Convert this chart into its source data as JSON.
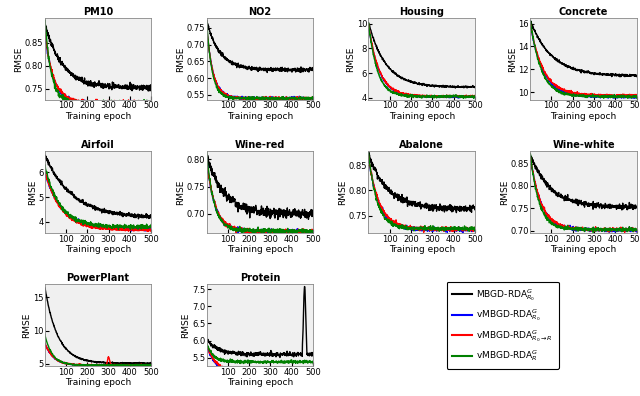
{
  "subplots": [
    {
      "title": "PM10",
      "row": 0,
      "col": 0,
      "ylim": [
        0.725,
        0.905
      ],
      "yticks": [
        0.75,
        0.8,
        0.85
      ],
      "curves": {
        "black": {
          "y0": 0.895,
          "yf": 0.752,
          "tau": 80,
          "noise": 0.003
        },
        "blue": {
          "y0": 0.875,
          "yf": 0.718,
          "tau": 40,
          "noise": 0.002
        },
        "red": {
          "y0": 0.88,
          "yf": 0.72,
          "tau": 40,
          "noise": 0.002
        },
        "green": {
          "y0": 0.91,
          "yf": 0.718,
          "tau": 30,
          "noise": 0.003
        }
      }
    },
    {
      "title": "NO2",
      "row": 0,
      "col": 1,
      "ylim": [
        0.535,
        0.78
      ],
      "yticks": [
        0.55,
        0.6,
        0.65,
        0.7,
        0.75
      ],
      "curves": {
        "black": {
          "y0": 0.775,
          "yf": 0.625,
          "tau": 60,
          "noise": 0.003
        },
        "blue": {
          "y0": 0.76,
          "yf": 0.54,
          "tau": 30,
          "noise": 0.002
        },
        "red": {
          "y0": 0.762,
          "yf": 0.54,
          "tau": 30,
          "noise": 0.002
        },
        "green": {
          "y0": 0.78,
          "yf": 0.54,
          "tau": 25,
          "noise": 0.002
        }
      }
    },
    {
      "title": "Housing",
      "row": 0,
      "col": 2,
      "ylim": [
        3.8,
        10.5
      ],
      "yticks": [
        4,
        6,
        8,
        10
      ],
      "curves": {
        "black": {
          "y0": 10.2,
          "yf": 4.85,
          "tau": 80,
          "noise": 0.04
        },
        "blue": {
          "y0": 10.0,
          "yf": 4.05,
          "tau": 50,
          "noise": 0.03
        },
        "red": {
          "y0": 10.1,
          "yf": 4.1,
          "tau": 50,
          "noise": 0.04
        },
        "green": {
          "y0": 10.3,
          "yf": 4.08,
          "tau": 40,
          "noise": 0.05
        }
      }
    },
    {
      "title": "Concrete",
      "row": 0,
      "col": 3,
      "ylim": [
        9.3,
        16.5
      ],
      "yticks": [
        10,
        12,
        14,
        16
      ],
      "curves": {
        "black": {
          "y0": 16.3,
          "yf": 11.4,
          "tau": 100,
          "noise": 0.05
        },
        "blue": {
          "y0": 16.0,
          "yf": 9.55,
          "tau": 60,
          "noise": 0.04
        },
        "red": {
          "y0": 16.1,
          "yf": 9.7,
          "tau": 60,
          "noise": 0.05
        },
        "green": {
          "y0": 16.4,
          "yf": 9.6,
          "tau": 50,
          "noise": 0.06
        }
      }
    },
    {
      "title": "Airfoil",
      "row": 1,
      "col": 0,
      "ylim": [
        3.55,
        6.85
      ],
      "yticks": [
        4,
        5,
        6
      ],
      "curves": {
        "black": {
          "y0": 6.7,
          "yf": 4.15,
          "tau": 130,
          "noise": 0.04
        },
        "blue": {
          "y0": 6.0,
          "yf": 3.72,
          "tau": 80,
          "noise": 0.03
        },
        "red": {
          "y0": 6.1,
          "yf": 3.68,
          "tau": 75,
          "noise": 0.03
        },
        "green": {
          "y0": 6.3,
          "yf": 3.8,
          "tau": 70,
          "noise": 0.04
        }
      }
    },
    {
      "title": "Wine-red",
      "row": 1,
      "col": 1,
      "ylim": [
        0.665,
        0.815
      ],
      "yticks": [
        0.7,
        0.75,
        0.8
      ],
      "curves": {
        "black": {
          "y0": 0.808,
          "yf": 0.7,
          "tau": 80,
          "noise": 0.004
        },
        "blue": {
          "y0": 0.8,
          "yf": 0.668,
          "tau": 40,
          "noise": 0.002
        },
        "red": {
          "y0": 0.802,
          "yf": 0.668,
          "tau": 40,
          "noise": 0.002
        },
        "green": {
          "y0": 0.815,
          "yf": 0.669,
          "tau": 35,
          "noise": 0.002
        }
      }
    },
    {
      "title": "Abalone",
      "row": 1,
      "col": 2,
      "ylim": [
        0.715,
        0.878
      ],
      "yticks": [
        0.75,
        0.8,
        0.85
      ],
      "curves": {
        "black": {
          "y0": 0.873,
          "yf": 0.763,
          "tau": 90,
          "noise": 0.003
        },
        "blue": {
          "y0": 0.868,
          "yf": 0.722,
          "tau": 50,
          "noise": 0.002
        },
        "red": {
          "y0": 0.87,
          "yf": 0.723,
          "tau": 50,
          "noise": 0.002
        },
        "green": {
          "y0": 0.878,
          "yf": 0.724,
          "tau": 40,
          "noise": 0.002
        }
      }
    },
    {
      "title": "Wine-white",
      "row": 1,
      "col": 3,
      "ylim": [
        0.695,
        0.878
      ],
      "yticks": [
        0.7,
        0.75,
        0.8,
        0.85
      ],
      "curves": {
        "black": {
          "y0": 0.873,
          "yf": 0.753,
          "tau": 90,
          "noise": 0.003
        },
        "blue": {
          "y0": 0.868,
          "yf": 0.702,
          "tau": 50,
          "noise": 0.002
        },
        "red": {
          "y0": 0.87,
          "yf": 0.703,
          "tau": 50,
          "noise": 0.002
        },
        "green": {
          "y0": 0.878,
          "yf": 0.703,
          "tau": 40,
          "noise": 0.002
        }
      }
    },
    {
      "title": "PowerPlant",
      "row": 2,
      "col": 0,
      "ylim": [
        4.6,
        17.0
      ],
      "yticks": [
        5,
        10,
        15
      ],
      "curves": {
        "black": {
          "y0": 16.8,
          "yf": 5.05,
          "tau": 60,
          "noise": 0.05
        },
        "blue": {
          "y0": 8.2,
          "yf": 4.75,
          "tau": 40,
          "noise": 0.03
        },
        "red": {
          "y0": 8.2,
          "yf": 4.78,
          "tau": 40,
          "noise": 0.05,
          "spike_epoch": 300,
          "spike_height": 1.2
        },
        "green": {
          "y0": 9.5,
          "yf": 4.77,
          "tau": 35,
          "noise": 0.04
        }
      }
    },
    {
      "title": "Protein",
      "row": 2,
      "col": 1,
      "ylim": [
        5.25,
        7.65
      ],
      "yticks": [
        5.5,
        6.0,
        6.5,
        7.0,
        7.5
      ],
      "curves": {
        "black": {
          "y0": 6.05,
          "yf": 5.6,
          "tau": 50,
          "noise": 0.03,
          "spike_epoch": 460,
          "spike_height": 2.0
        },
        "blue": {
          "y0": 5.9,
          "yf": 5.05,
          "tau": 40,
          "noise": 0.015
        },
        "red": {
          "y0": 5.92,
          "yf": 5.1,
          "tau": 40,
          "noise": 0.02
        },
        "green": {
          "y0": 5.95,
          "yf": 5.38,
          "tau": 30,
          "noise": 0.02
        }
      }
    }
  ],
  "legend_labels": [
    "MBGD-RDA$^G_{R_0}$",
    "vMBGD-RDA$^G_{R_0}$",
    "vMBGD-RDA$^G_{R_0\\rightarrow R}$",
    "vMBGD-RDA$^G_{R}$"
  ],
  "legend_colors": [
    "black",
    "blue",
    "red",
    "green"
  ],
  "xlabel": "Training epoch",
  "ylabel": "RMSE",
  "xticks": [
    100,
    200,
    300,
    400,
    500
  ],
  "n_epochs": 500,
  "bg_color": "#f0f0f0",
  "line_width": 1.0
}
